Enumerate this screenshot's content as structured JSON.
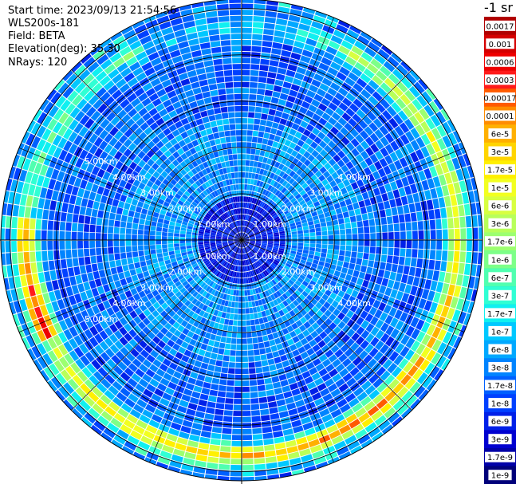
{
  "info": {
    "start_time": "Start time: 2023/09/13 21:54:56",
    "device": "WLS200s-181",
    "field": "Field: BETA",
    "elevation": "Elevation(deg): 35.30",
    "nrays": "NRays: 120"
  },
  "chart_data": {
    "type": "heatmap",
    "projection": "polar-ppi",
    "field": "BETA",
    "unit_label": "-1 sr",
    "n_rays": 120,
    "elevation_deg": 35.3,
    "range_rings_km": [
      1,
      2,
      3,
      4,
      5
    ],
    "max_range_km": 5.2,
    "range_labels": [
      "1.00km",
      "2.00km",
      "3.00km",
      "4.00km",
      "5.00km"
    ],
    "colorbar": {
      "ticks": [
        "0.0017",
        "0.001",
        "0.0006",
        "0.0003",
        "0.00017",
        "0.0001",
        "6e-5",
        "3e-5",
        "1.7e-5",
        "1e-5",
        "6e-6",
        "3e-6",
        "1.7e-6",
        "1e-6",
        "6e-7",
        "3e-7",
        "1.7e-7",
        "1e-7",
        "6e-8",
        "3e-8",
        "1.7e-8",
        "1e-8",
        "6e-9",
        "3e-9",
        "1.7e-9",
        "1e-9"
      ],
      "colors": [
        "#b00000",
        "#d40000",
        "#ee0000",
        "#ff1a1a",
        "#ff5a00",
        "#ff8c00",
        "#ffb000",
        "#ffd400",
        "#fff000",
        "#f2ff20",
        "#d8ff40",
        "#b8ff5a",
        "#9cff70",
        "#7dff88",
        "#50ffb0",
        "#30ffd4",
        "#10f0f0",
        "#00c8ff",
        "#00a8ff",
        "#0084ff",
        "#0060ff",
        "#0040ff",
        "#0020e8",
        "#0000d0",
        "#0000a8",
        "#00007a"
      ]
    }
  }
}
